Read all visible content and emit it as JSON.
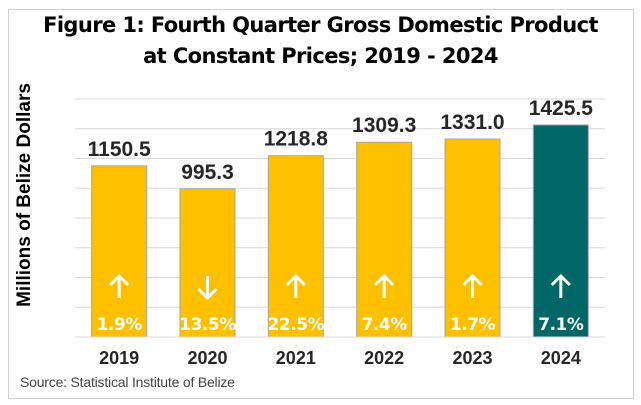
{
  "chart_data": {
    "type": "bar",
    "title_line1": "Figure 1: Fourth Quarter Gross Domestic Product",
    "title_line2": "at Constant Prices; 2019 - 2024",
    "xlabel": "",
    "ylabel": "Millions of Belize Dollars",
    "ylim": [
      0,
      1600
    ],
    "ytick_step": 200,
    "grid": true,
    "show_y_tick_labels": false,
    "categories": [
      "2019",
      "2020",
      "2021",
      "2022",
      "2023",
      "2024"
    ],
    "values": [
      1150.5,
      995.3,
      1218.8,
      1309.3,
      1331.0,
      1425.5
    ],
    "value_labels": [
      "1150.5",
      "995.3",
      "1218.8",
      "1309.3",
      "1331.0",
      "1425.5"
    ],
    "growth": [
      {
        "direction": "up",
        "label": "1.9%"
      },
      {
        "direction": "down",
        "label": "13.5%"
      },
      {
        "direction": "up",
        "label": "22.5%"
      },
      {
        "direction": "up",
        "label": "7.4%"
      },
      {
        "direction": "up",
        "label": "1.7%"
      },
      {
        "direction": "up",
        "label": "7.1%"
      }
    ],
    "bar_colors": [
      "#FFC000",
      "#FFC000",
      "#FFC000",
      "#FFC000",
      "#FFC000",
      "#006666"
    ],
    "source": "Source: Statistical Institute of Belize"
  }
}
